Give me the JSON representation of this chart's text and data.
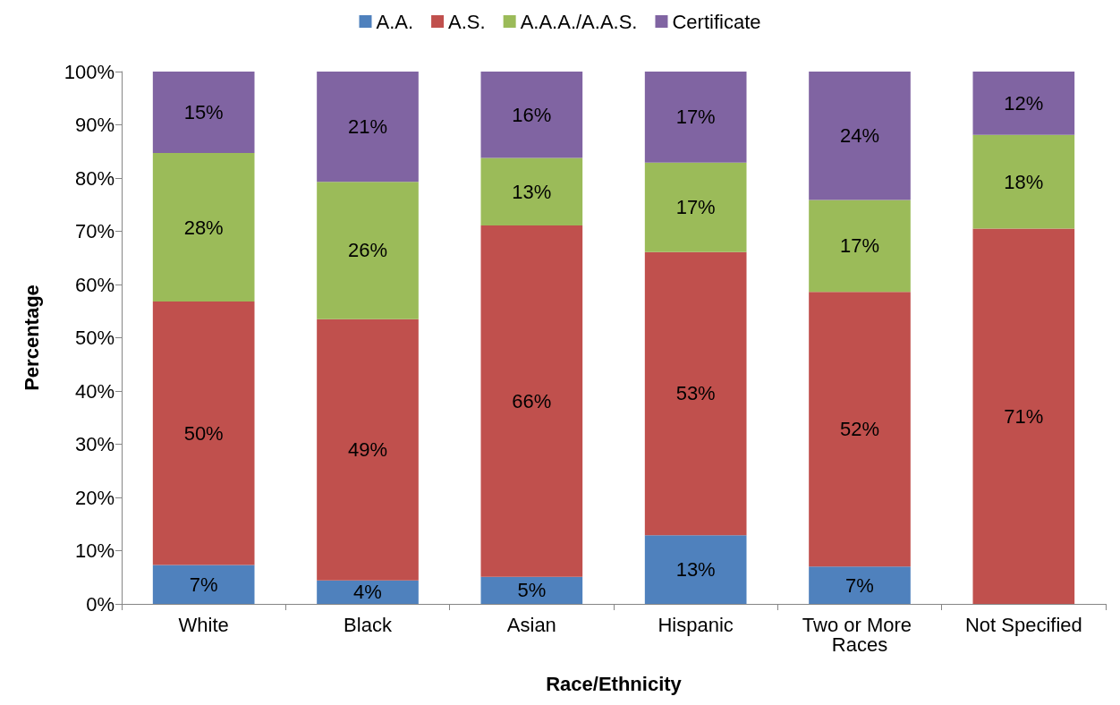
{
  "chart_data": {
    "type": "bar",
    "stacked": true,
    "xlabel": "Race/Ethnicity",
    "ylabel": "Percentage",
    "legend": "top",
    "grid": false,
    "categories": [
      "White",
      "Black",
      "Asian",
      "Hispanic",
      "Two or More Races",
      "Not Specified"
    ],
    "ylim": [
      0,
      100
    ],
    "yticks": [
      {
        "value": 0,
        "label": "0%"
      },
      {
        "value": 10,
        "label": "10%"
      },
      {
        "value": 20,
        "label": "20%"
      },
      {
        "value": 30,
        "label": "30%"
      },
      {
        "value": 40,
        "label": "40%"
      },
      {
        "value": 50,
        "label": "50%"
      },
      {
        "value": 60,
        "label": "60%"
      },
      {
        "value": 70,
        "label": "70%"
      },
      {
        "value": 80,
        "label": "80%"
      },
      {
        "value": 90,
        "label": "90%"
      },
      {
        "value": 100,
        "label": "100%"
      }
    ],
    "series": [
      {
        "name": "A.A.",
        "color": "#4f81bd",
        "values": [
          7.3,
          4.4,
          5.1,
          12.9,
          7.0,
          null
        ],
        "value_labels": [
          "7%",
          "4%",
          "5%",
          "13%",
          "7%",
          null
        ]
      },
      {
        "name": "A.S.",
        "color": "#c0504d",
        "values": [
          49.5,
          49.1,
          66.0,
          53.2,
          51.6,
          70.5
        ],
        "value_labels": [
          "50%",
          "49%",
          "66%",
          "53%",
          "52%",
          "71%"
        ]
      },
      {
        "name": "A.A.A./A.A.S.",
        "color": "#9bbb59",
        "values": [
          27.9,
          25.8,
          12.7,
          16.8,
          17.3,
          17.6
        ],
        "value_labels": [
          "28%",
          "26%",
          "13%",
          "17%",
          "17%",
          "18%"
        ]
      },
      {
        "name": "Certificate",
        "color": "#8064a2",
        "values": [
          15.3,
          20.7,
          16.2,
          17.1,
          24.1,
          11.9
        ],
        "value_labels": [
          "15%",
          "21%",
          "16%",
          "17%",
          "24%",
          "12%"
        ]
      }
    ]
  }
}
